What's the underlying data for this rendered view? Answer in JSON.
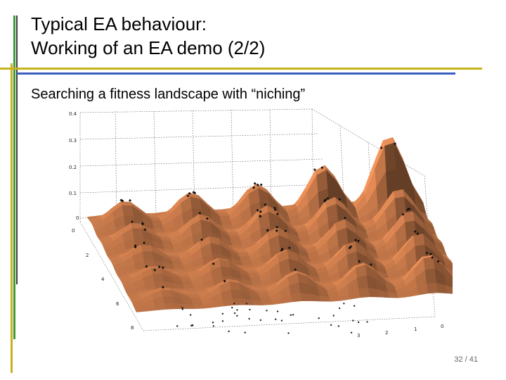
{
  "slide": {
    "title_line1": "Typical EA behaviour:",
    "title_line2": "Working of an EA demo (2/2)",
    "subtitle": "Searching a fitness landscape with “niching”",
    "page_number": "32 / 41"
  },
  "plot": {
    "surface_color": "#c8784a",
    "z_ticks": [
      "0.4",
      "0.3",
      "0.2",
      "0.1",
      "0"
    ],
    "left_axis_ticks": [
      "0",
      "2",
      "4",
      "6",
      "8"
    ],
    "right_axis_ticks": [
      "3",
      "2",
      "1",
      "0"
    ]
  },
  "colors": {
    "accent_green": "#3f9a3a",
    "accent_gold": "#c9b21e",
    "accent_blue": "#3b5fbf"
  }
}
